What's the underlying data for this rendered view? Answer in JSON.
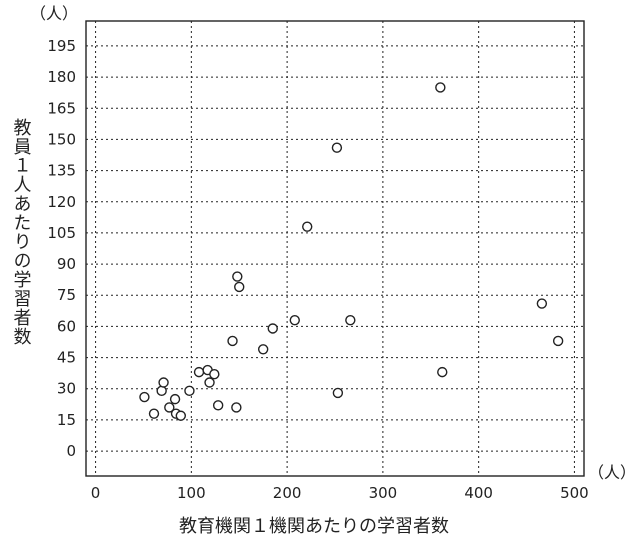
{
  "chart_data": {
    "type": "scatter",
    "title": "",
    "xlabel": "教育機関１機関あたりの学習者数",
    "ylabel": "教員１人あたりの学習者数",
    "x_unit": "（人）",
    "y_unit": "（人）",
    "xlim": [
      -10,
      510
    ],
    "ylim": [
      -12,
      207
    ],
    "x_ticks": [
      0,
      100,
      200,
      300,
      400,
      500
    ],
    "y_ticks": [
      0,
      15,
      30,
      45,
      60,
      75,
      90,
      105,
      120,
      135,
      150,
      165,
      180,
      195
    ],
    "grid": true,
    "points": [
      {
        "x": 51,
        "y": 26
      },
      {
        "x": 61,
        "y": 18
      },
      {
        "x": 69,
        "y": 29
      },
      {
        "x": 71,
        "y": 33
      },
      {
        "x": 77,
        "y": 21
      },
      {
        "x": 83,
        "y": 25
      },
      {
        "x": 84,
        "y": 18
      },
      {
        "x": 89,
        "y": 17
      },
      {
        "x": 98,
        "y": 29
      },
      {
        "x": 108,
        "y": 38
      },
      {
        "x": 117,
        "y": 39
      },
      {
        "x": 119,
        "y": 33
      },
      {
        "x": 124,
        "y": 37
      },
      {
        "x": 128,
        "y": 22
      },
      {
        "x": 143,
        "y": 53
      },
      {
        "x": 147,
        "y": 21
      },
      {
        "x": 148,
        "y": 84
      },
      {
        "x": 150,
        "y": 79
      },
      {
        "x": 175,
        "y": 49
      },
      {
        "x": 185,
        "y": 59
      },
      {
        "x": 208,
        "y": 63
      },
      {
        "x": 221,
        "y": 108
      },
      {
        "x": 252,
        "y": 146
      },
      {
        "x": 253,
        "y": 28
      },
      {
        "x": 266,
        "y": 63
      },
      {
        "x": 360,
        "y": 175
      },
      {
        "x": 362,
        "y": 38
      },
      {
        "x": 466,
        "y": 71
      },
      {
        "x": 483,
        "y": 53
      }
    ]
  }
}
